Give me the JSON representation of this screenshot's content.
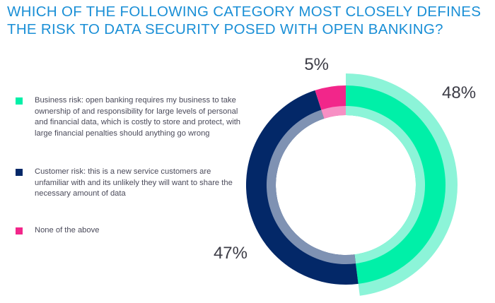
{
  "title": "WHICH OF THE FOLLOWING CATEGORY MOST CLOSELY DEFINES THE RISK TO DATA SECURITY POSED WITH OPEN BANKING?",
  "chart_data": {
    "type": "pie",
    "variant": "donut",
    "title": "WHICH OF THE FOLLOWING CATEGORY MOST CLOSELY DEFINES THE RISK TO DATA SECURITY POSED WITH OPEN BANKING?",
    "legend_position": "left",
    "slices": [
      {
        "name": "Business risk: open banking requires my business to take ownership of and responsibility for large levels of personal and financial data, which is costly to store and protect, with large financial penalties should anything go wrong",
        "value": 48,
        "label": "48%",
        "color": "#00f0a8",
        "accent_color": "#8cf4d8"
      },
      {
        "name": "Customer risk: this is a new service customers are unfamiliar with and its unlikely they will want to share the necessary amount of data",
        "value": 47,
        "label": "47%",
        "color": "#032868",
        "accent_color": "#7f92b3"
      },
      {
        "name": "None of the above",
        "value": 5,
        "label": "5%",
        "color": "#f2268a",
        "accent_color": "#f78fc4"
      }
    ]
  }
}
